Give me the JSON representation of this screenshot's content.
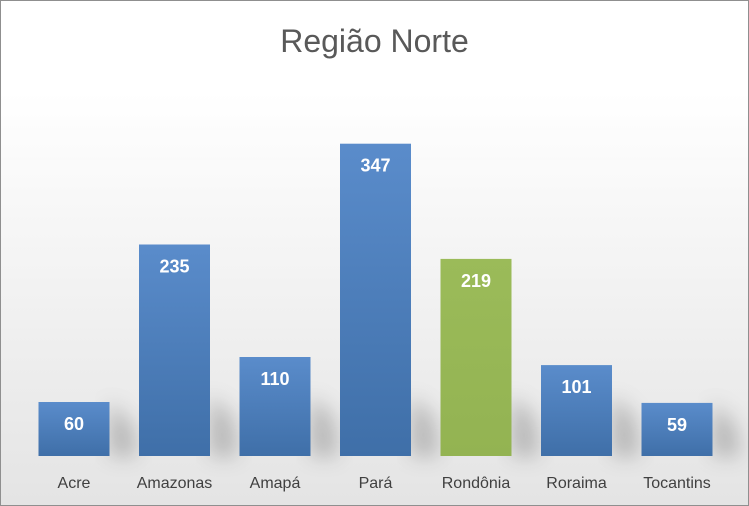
{
  "chart_data": {
    "type": "bar",
    "title": "Região Norte",
    "categories": [
      "Acre",
      "Amazonas",
      "Amapá",
      "Pará",
      "Rondônia",
      "Roraima",
      "Tocantins"
    ],
    "values": [
      60,
      235,
      110,
      347,
      219,
      101,
      59
    ],
    "xlabel": "",
    "ylabel": "",
    "grid": false,
    "legend": "none",
    "colors": {
      "default": "#4f81bd",
      "highlight": "#9bbb59",
      "highlight_category": "Rondônia"
    }
  }
}
